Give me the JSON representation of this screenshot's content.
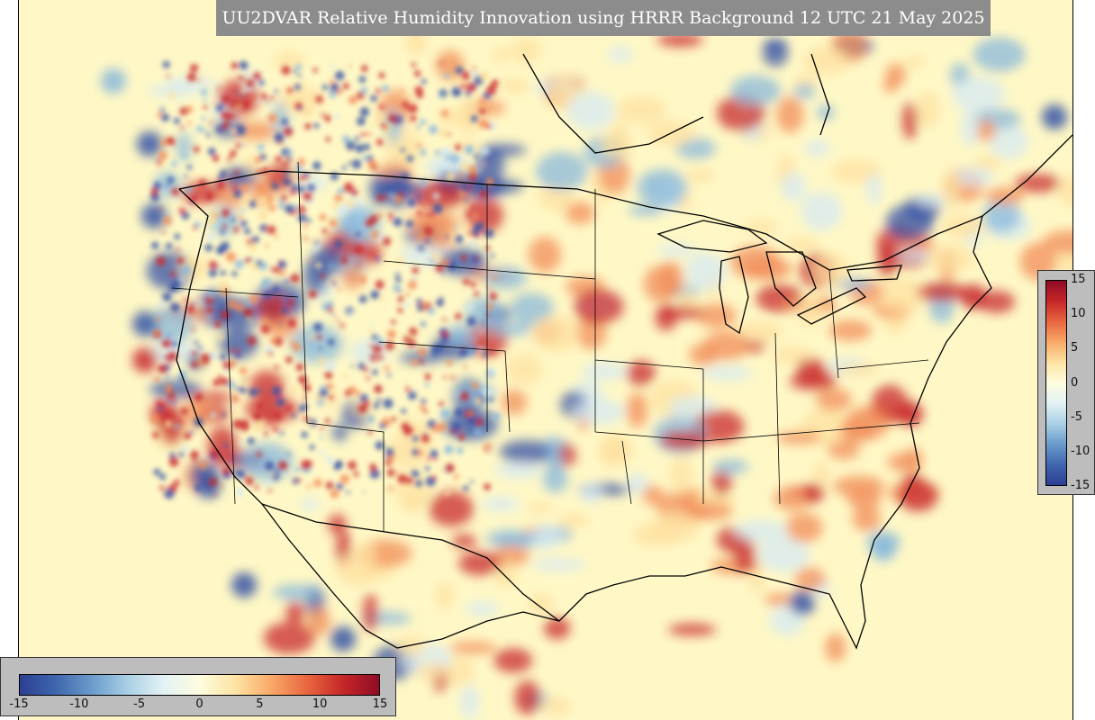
{
  "title": "UU2DVAR Relative Humidity Innovation using HRRR Background 12 UTC 21 May 2025",
  "colorbar": {
    "min": -15,
    "max": 15,
    "ticks": [
      -15,
      -10,
      -5,
      0,
      5,
      10,
      15
    ],
    "horizontal_tick_labels": [
      "-15",
      "-10",
      "-5",
      "0",
      "5",
      "10",
      "15"
    ],
    "vertical_tick_labels": [
      "15",
      "10",
      "5",
      "0",
      "-5",
      "-10",
      "-15"
    ],
    "colors": [
      "#2c3e93",
      "#3f66ad",
      "#6a9bcc",
      "#a9cfe5",
      "#e3f2f4",
      "#fefddf",
      "#fde3a3",
      "#f9a968",
      "#e8663f",
      "#c62628",
      "#8e0c26"
    ]
  },
  "map": {
    "background_color": "#fff8c6",
    "palette": {
      "strong_negative": "#3653a6",
      "negative": "#8ab8dc",
      "weak_negative": "#d5e9f3",
      "weak_positive": "#fde0a0",
      "positive": "#f28e59",
      "strong_positive": "#c8282e"
    }
  }
}
